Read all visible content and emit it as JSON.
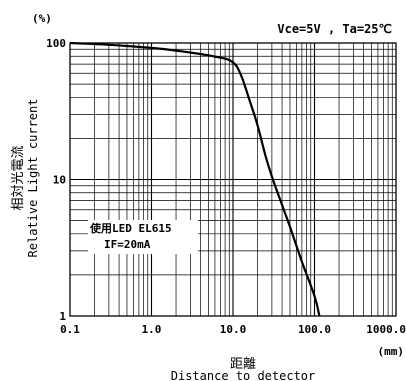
{
  "chart_data": {
    "type": "line",
    "conditions": "Vce=5V , Ta=25℃",
    "yunit": "(%)",
    "xunit": "(mm)",
    "xlabel_jp": "距離",
    "xlabel": "Distance to detector",
    "ylabel_jp": "相対光電流",
    "ylabel": "Relative Light current",
    "xscale": "log",
    "yscale": "log",
    "xlim": [
      0.1,
      1000
    ],
    "ylim": [
      1,
      100
    ],
    "grid": true,
    "x_ticks": [
      "0.1",
      "1.0",
      "10.0",
      "100.0",
      "1000.0"
    ],
    "y_ticks": [
      "1",
      "10",
      "100"
    ],
    "annotation": {
      "line1": "使用LED EL615",
      "line2": "IF=20mA"
    },
    "series": [
      {
        "x": [
          0.1,
          0.3,
          1.0,
          2.0,
          4.0,
          7.0,
          9.0,
          11.0,
          13.0,
          16.0,
          20.0,
          25.0,
          30.0,
          40.0,
          50.0,
          70.0,
          100.0,
          115.0
        ],
        "y": [
          100,
          97,
          92,
          88,
          83,
          78,
          75,
          68,
          55,
          38,
          25,
          15,
          10.5,
          6.5,
          4.5,
          2.5,
          1.4,
          1.0
        ]
      }
    ]
  }
}
